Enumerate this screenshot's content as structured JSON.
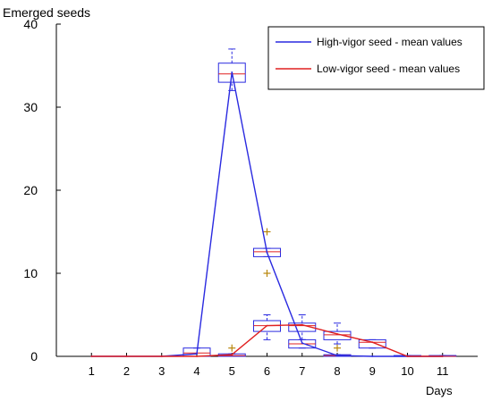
{
  "chart_data": {
    "type": "line",
    "ylabel": "Emerged seeds",
    "xlabel": "Days",
    "x": [
      1,
      2,
      3,
      4,
      5,
      6,
      7,
      8,
      9,
      10,
      11
    ],
    "xlim": [
      0,
      12
    ],
    "ylim": [
      0,
      40
    ],
    "yticks": [
      0,
      10,
      20,
      30,
      40
    ],
    "grid": false,
    "legend_position": "top-right",
    "colors": {
      "high": "#2a2ae0",
      "low": "#e02020",
      "outlier": "#b8860b",
      "axis": "#000000"
    },
    "series": [
      {
        "name": "High-vigor seed - mean values",
        "color": "#2a2ae0",
        "values": [
          0,
          0,
          0,
          0.3,
          34.2,
          12.5,
          1.6,
          0.1,
          0,
          0,
          0
        ]
      },
      {
        "name": "Low-vigor seed - mean values",
        "color": "#e02020",
        "values": [
          0,
          0,
          0,
          0,
          0.2,
          3.7,
          3.8,
          2.7,
          1.7,
          0,
          0
        ]
      }
    ],
    "boxplots": [
      {
        "x": 4,
        "q1": 0,
        "median": 0.4,
        "q3": 1.0,
        "whisker_low": 0,
        "whisker_high": 1.0,
        "outliers": []
      },
      {
        "x": 5,
        "q1": 33.0,
        "median": 34.0,
        "q3": 35.3,
        "whisker_low": 32.0,
        "whisker_high": 37.0,
        "outliers": []
      },
      {
        "x": 5,
        "q1": 0,
        "median": 0.1,
        "q3": 0.3,
        "whisker_low": 0,
        "whisker_high": 0.3,
        "outliers": [
          1.0
        ]
      },
      {
        "x": 6,
        "q1": 12.0,
        "median": 12.6,
        "q3": 13.0,
        "whisker_low": 12.0,
        "whisker_high": 13.0,
        "outliers": [
          10,
          15
        ]
      },
      {
        "x": 6,
        "q1": 3.0,
        "median": 3.7,
        "q3": 4.3,
        "whisker_low": 2.0,
        "whisker_high": 5.0,
        "outliers": []
      },
      {
        "x": 7,
        "q1": 3.0,
        "median": 3.7,
        "q3": 4.0,
        "whisker_low": 2.0,
        "whisker_high": 5.0,
        "outliers": []
      },
      {
        "x": 7,
        "q1": 1.0,
        "median": 1.5,
        "q3": 2.0,
        "whisker_low": 1.0,
        "whisker_high": 2.0,
        "outliers": []
      },
      {
        "x": 8,
        "q1": 2.0,
        "median": 2.6,
        "q3": 3.0,
        "whisker_low": 1.5,
        "whisker_high": 4.0,
        "outliers": [
          1.0
        ]
      },
      {
        "x": 8,
        "q1": 0,
        "median": 0.1,
        "q3": 0.2,
        "whisker_low": 0,
        "whisker_high": 0.2,
        "outliers": []
      },
      {
        "x": 9,
        "q1": 1.0,
        "median": 1.7,
        "q3": 2.0,
        "whisker_low": 1.0,
        "whisker_high": 2.0,
        "outliers": []
      },
      {
        "x": 10,
        "q1": 0,
        "median": 0,
        "q3": 0.1,
        "whisker_low": 0,
        "whisker_high": 0.1,
        "outliers": []
      },
      {
        "x": 11,
        "q1": 0,
        "median": 0,
        "q3": 0.1,
        "whisker_low": 0,
        "whisker_high": 0.1,
        "outliers": []
      }
    ]
  }
}
